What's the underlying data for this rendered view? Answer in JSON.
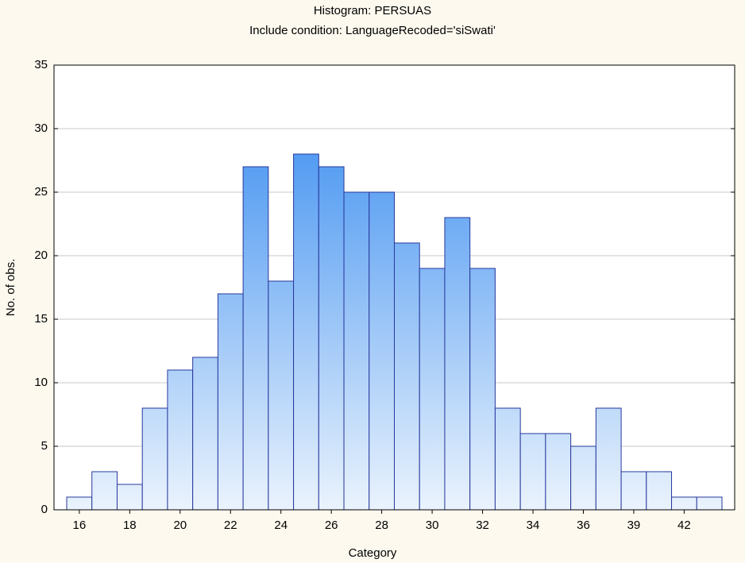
{
  "chart_data": {
    "type": "bar",
    "title": "Histogram: PERSUAS",
    "subtitle": "Include condition: LanguageRecoded='siSwati'",
    "xlabel": "Category",
    "ylabel": "No. of obs.",
    "categories": [
      "16",
      null,
      "18",
      null,
      "20",
      null,
      "22",
      null,
      "24",
      null,
      "26",
      null,
      "28",
      null,
      "30",
      null,
      "32",
      null,
      "34",
      null,
      "36",
      null,
      "39",
      null,
      "42",
      null
    ],
    "values": [
      1,
      3,
      2,
      8,
      11,
      12,
      17,
      27,
      18,
      28,
      27,
      25,
      25,
      21,
      19,
      23,
      19,
      8,
      6,
      6,
      5,
      8,
      3,
      3,
      1,
      1
    ],
    "gradient": [
      "#2e86ef",
      "#eaf3fd"
    ],
    "edge_color": "#27389c",
    "ylim": [
      0,
      35
    ],
    "yticks": [
      0,
      5,
      10,
      15,
      20,
      25,
      30,
      35
    ],
    "grid": true
  }
}
